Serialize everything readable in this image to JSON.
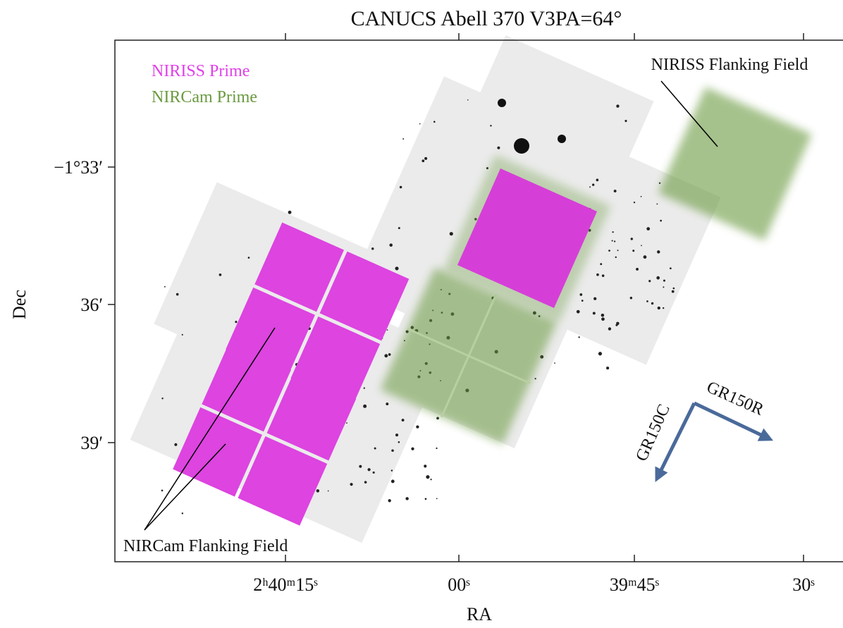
{
  "title": "CANUCS Abell 370 V3PA=64°",
  "axes": {
    "x_label": "RA",
    "y_label": "Dec",
    "x_ticks": [
      "2ʰ40ᵐ15ˢ",
      "00ˢ",
      "39ᵐ45ˢ",
      "30ˢ"
    ],
    "y_ticks": [
      "−1°33′",
      "36′",
      "39′"
    ]
  },
  "legend": [
    {
      "label": "NIRISS Prime",
      "color": "#e040e8"
    },
    {
      "label": "NIRCam Prime",
      "color": "#6a9a40"
    }
  ],
  "annotations": {
    "niriss_flanking": "NIRISS Flanking Field",
    "nircam_flanking": "NIRCam Flanking Field"
  },
  "compass": {
    "row": "GR150R",
    "column": "GR150C"
  }
}
